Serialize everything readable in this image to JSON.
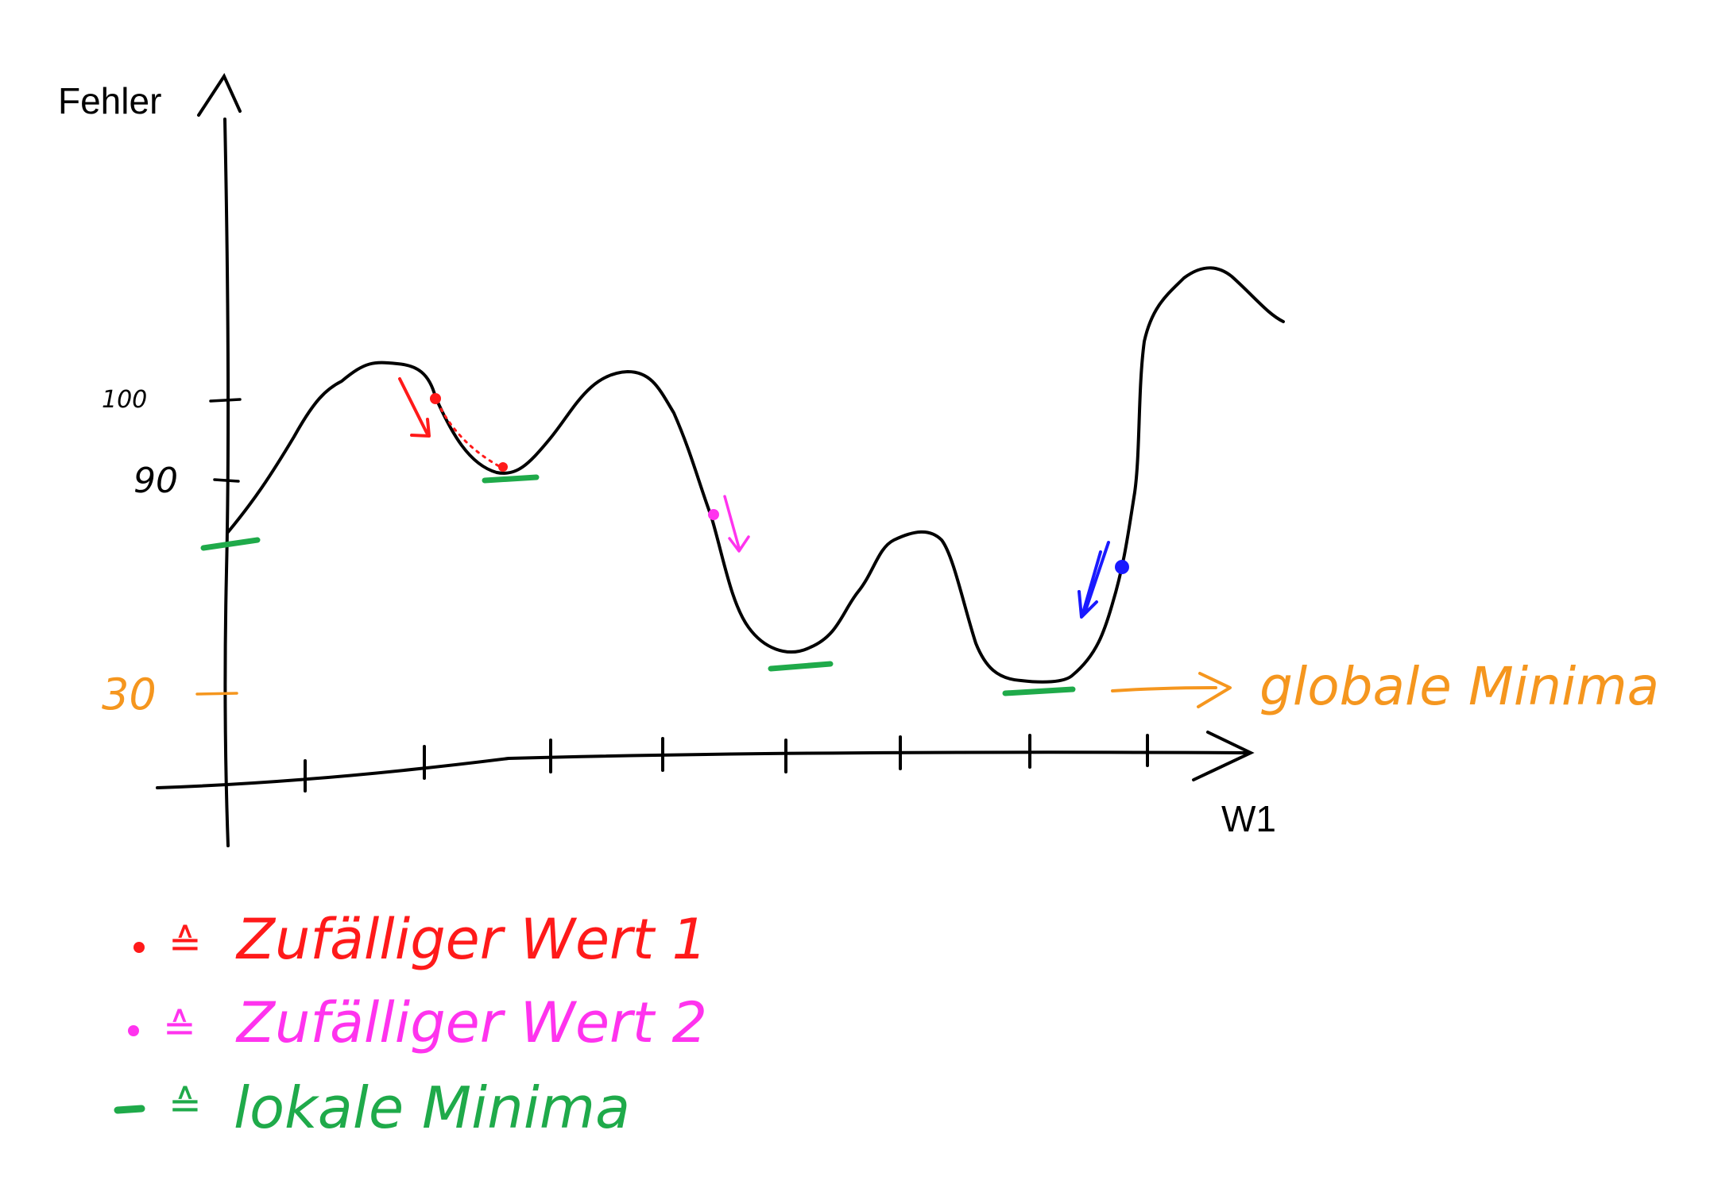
{
  "axes": {
    "y_label": "Fehler",
    "x_label": "W1",
    "y_ticks": [
      {
        "label": "100",
        "color": "#000000"
      },
      {
        "label": "90",
        "color": "#000000"
      },
      {
        "label": "30",
        "color": "#f5961e"
      }
    ]
  },
  "annotation": {
    "text": "globale Minima",
    "color": "#f5961e"
  },
  "colors": {
    "curve": "#000000",
    "random_value_1": "#ff1a1a",
    "random_value_2": "#ff33ee",
    "descent_blue": "#1a1aff",
    "local_minima": "#1faa4a"
  },
  "legend": [
    {
      "symbol": "dot",
      "equals": "≙",
      "text": "Zufälliger Wert 1",
      "color": "#ff1a1a"
    },
    {
      "symbol": "dot",
      "equals": "≙",
      "text": "Zufälliger Wert 2",
      "color": "#ff33ee"
    },
    {
      "symbol": "dash",
      "equals": "≙",
      "text": "lokale Minima",
      "color": "#1faa4a"
    }
  ]
}
